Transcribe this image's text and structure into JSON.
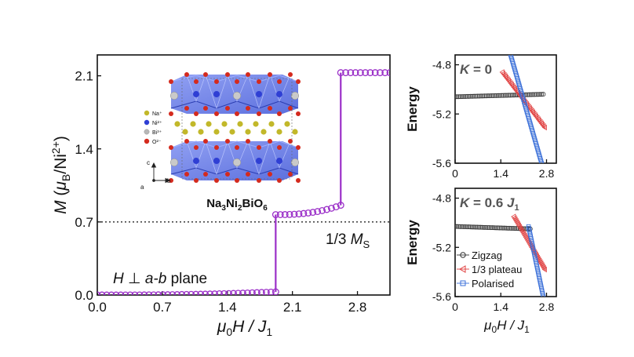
{
  "chart_data": [
    {
      "type": "scatter",
      "ylabel": {
        "sym": "M",
        "open": " (",
        "mu": "μ",
        "sub": "B",
        "mid": "/Ni",
        "sup": "2+",
        "close": ")"
      },
      "xlabel": {
        "mu": "μ",
        "sub": "0",
        "rest": "H / J",
        "sub2": "1"
      },
      "xlim": [
        0.0,
        3.15
      ],
      "ylim": [
        0.0,
        2.3
      ],
      "xticks": [
        "0.0",
        "0.7",
        "1.4",
        "2.1",
        "2.8"
      ],
      "yticks": [
        "0.0",
        "0.7",
        "1.4",
        "2.1"
      ],
      "marker_color": "#9b30c8",
      "plateau_line_y": 0.7,
      "plateau_label": {
        "main": "1/3 ",
        "sym": "M",
        "sub": "S"
      },
      "annotation": {
        "sym": "H",
        "perp": " ⊥ ",
        "ab": "a-b",
        "rest": " plane"
      },
      "steps": [
        {
          "x_start": 0.0,
          "x_end": 1.92,
          "y_start": 0.0,
          "y_end": 0.03
        },
        {
          "x_start": 1.92,
          "x_end": 1.92,
          "y_start": 0.03,
          "y_end": 0.77
        },
        {
          "x_start": 1.92,
          "x_end": 2.62,
          "y_start": 0.77,
          "y_end": 0.86
        },
        {
          "x_start": 2.62,
          "x_end": 2.62,
          "y_start": 0.86,
          "y_end": 2.13
        },
        {
          "x_start": 2.62,
          "x_end": 3.15,
          "y_start": 2.13,
          "y_end": 2.13
        }
      ],
      "inset": {
        "legend": [
          "Na⁺",
          "Ni²⁺",
          "Bi³⁺",
          "O²⁻"
        ],
        "legend_colors": [
          "#c2b82a",
          "#2f3fd4",
          "#b8b8b8",
          "#d42a1e"
        ],
        "axes": {
          "c": "c",
          "a": "a",
          "b": "b"
        },
        "formula": {
          "t1": "Na",
          "s1": "3",
          "t2": "Ni",
          "s2": "2",
          "t3": "BiO",
          "s3": "6"
        }
      }
    },
    {
      "type": "line",
      "panel_label": {
        "sym": "K",
        "rest": " = 0"
      },
      "ylabel": "Energy",
      "xlim": [
        0.0,
        3.1
      ],
      "ylim": [
        -5.6,
        -4.72
      ],
      "xticks": [
        "0",
        "1.4",
        "2.8"
      ],
      "yticks": [
        "-4.8",
        "-5.2",
        "-5.6"
      ],
      "series": [
        {
          "color": "#333333",
          "x": [
            0.0,
            2.7
          ],
          "y": [
            -5.06,
            -5.04
          ]
        },
        {
          "color": "#e04040",
          "x": [
            1.45,
            2.75
          ],
          "y": [
            -4.86,
            -5.31
          ]
        },
        {
          "color": "#3a6fd8",
          "x": [
            1.7,
            2.65
          ],
          "y": [
            -4.72,
            -5.6
          ]
        }
      ]
    },
    {
      "type": "line",
      "panel_label": {
        "sym": "K",
        "rest": " = 0.6 ",
        "sym2": "J",
        "sub": "1"
      },
      "ylabel": "Energy",
      "xlabel": {
        "mu": "μ",
        "sub": "0",
        "rest": "H / J",
        "sub2": "1"
      },
      "xlim": [
        0.0,
        3.1
      ],
      "ylim": [
        -5.6,
        -4.72
      ],
      "xticks": [
        "0",
        "1.4",
        "2.8"
      ],
      "yticks": [
        "-4.8",
        "-5.2",
        "-5.6"
      ],
      "legend": [
        "Zigzag",
        "1/3 plateau",
        "Polarised"
      ],
      "series": [
        {
          "name": "Zigzag",
          "color": "#333333",
          "x": [
            0.0,
            2.3
          ],
          "y": [
            -5.03,
            -5.05
          ]
        },
        {
          "name": "1/3 plateau",
          "color": "#e04040",
          "x": [
            1.8,
            2.75
          ],
          "y": [
            -4.95,
            -5.38
          ]
        },
        {
          "name": "Polarised",
          "color": "#3a6fd8",
          "x": [
            2.25,
            2.7
          ],
          "y": [
            -5.03,
            -5.6
          ]
        }
      ]
    }
  ]
}
